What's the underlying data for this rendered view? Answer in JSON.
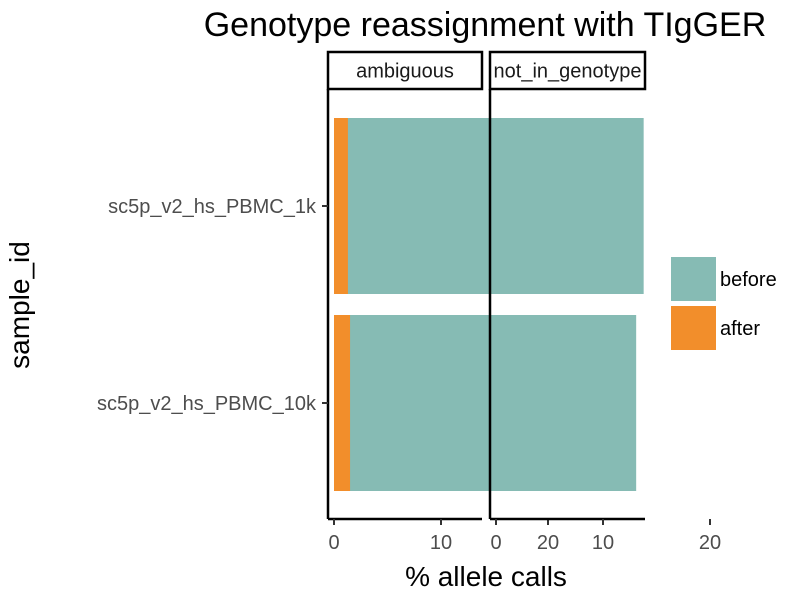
{
  "chart_data": {
    "type": "bar",
    "orientation": "horizontal",
    "stacked": true,
    "title": "Genotype reassignment with TIgGER",
    "xlabel": "% allele calls",
    "ylabel": "sample_id",
    "xlim": [
      0,
      27
    ],
    "x_ticks": [
      "0",
      "10",
      "20"
    ],
    "categories": [
      "sc5p_v2_hs_PBMC_1k",
      "sc5p_v2_hs_PBMC_10k"
    ],
    "facets": [
      "ambiguous",
      "not_in_genotype"
    ],
    "legend_position": "right",
    "grid": false,
    "series": [
      {
        "name": "before",
        "color": "#86bbb4",
        "values": {
          "ambiguous": [
            25.4,
            26.1
          ],
          "not_in_genotype": [
            13.8,
            13.1
          ]
        }
      },
      {
        "name": "after",
        "color": "#f28e2b",
        "values": {
          "ambiguous": [
            1.3,
            1.5
          ],
          "not_in_genotype": [
            0,
            0
          ]
        }
      }
    ]
  }
}
